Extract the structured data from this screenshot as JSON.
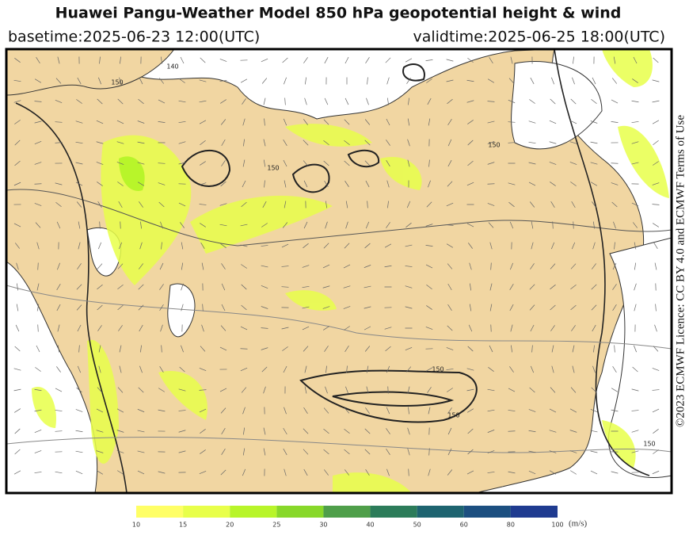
{
  "header": {
    "title": "Huawei Pangu-Weather Model 850 hPa geopotential height & wind",
    "basetime": "basetime:2025-06-23 12:00(UTC)",
    "validtime": "validtime:2025-06-25 18:00(UTC)"
  },
  "licence": "©2023 ECMWF Licence: CC BY 4.0 and ECMWF Terms of Use",
  "map": {
    "contour_labels": [
      "150",
      "150",
      "150",
      "150",
      "140",
      "150",
      "150"
    ]
  },
  "colorbar": {
    "ticks": [
      10,
      15,
      20,
      25,
      30,
      40,
      50,
      60,
      80,
      100
    ],
    "colors": [
      "#ffff66",
      "#e8ff4a",
      "#b8f52a",
      "#88d82a",
      "#4f9f4a",
      "#2c7c5a",
      "#1e6470",
      "#1c4f80",
      "#1f3b90",
      "#2a2aa8"
    ],
    "unit": "(m/s)"
  }
}
